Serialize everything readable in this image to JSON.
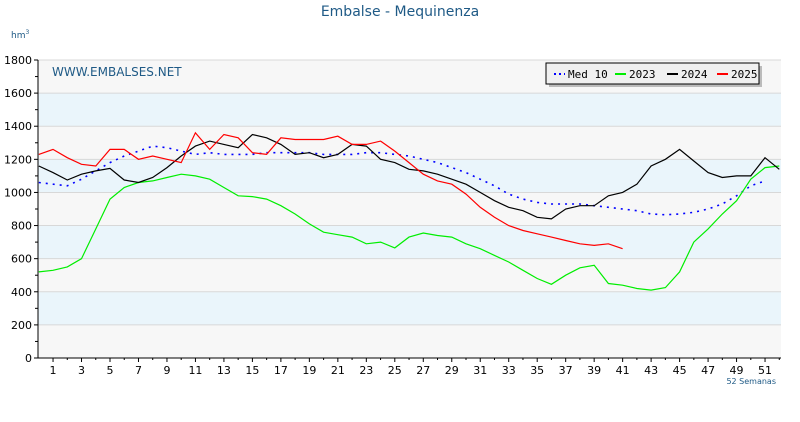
{
  "chart_data": {
    "type": "line",
    "title": "Embalse - Mequinenza",
    "ylabel": "hm",
    "ylabel_sup": "3",
    "watermark": "WWW.EMBALSES.NET",
    "xlabel": "52 Semanas",
    "ylim": [
      0,
      1800
    ],
    "yticks": [
      0,
      200,
      400,
      600,
      800,
      1000,
      1200,
      1400,
      1600,
      1800
    ],
    "xticks": [
      1,
      3,
      5,
      7,
      9,
      11,
      13,
      15,
      17,
      19,
      21,
      23,
      25,
      27,
      29,
      31,
      33,
      35,
      37,
      39,
      41,
      43,
      45,
      47,
      49,
      51
    ],
    "xlim": [
      0,
      52
    ],
    "grid": true,
    "legend_position": "top-right",
    "band_colors": [
      "#f7f7f7",
      "#eaf5fb"
    ],
    "series": [
      {
        "name": "Med 10",
        "color": "#0000ff",
        "style": "dotted",
        "values": [
          1060,
          1050,
          1040,
          1080,
          1130,
          1180,
          1220,
          1250,
          1280,
          1270,
          1250,
          1230,
          1240,
          1230,
          1230,
          1230,
          1240,
          1240,
          1240,
          1240,
          1230,
          1230,
          1230,
          1240,
          1240,
          1230,
          1220,
          1200,
          1180,
          1150,
          1120,
          1080,
          1040,
          990,
          960,
          940,
          930,
          930,
          930,
          920,
          910,
          900,
          890,
          870,
          865,
          870,
          880,
          900,
          930,
          980,
          1040,
          1070
        ]
      },
      {
        "name": "2023",
        "color": "#00ee00",
        "style": "solid",
        "values": [
          520,
          530,
          550,
          600,
          780,
          960,
          1030,
          1060,
          1070,
          1090,
          1110,
          1100,
          1080,
          1030,
          980,
          975,
          960,
          920,
          870,
          810,
          760,
          745,
          730,
          690,
          700,
          665,
          730,
          755,
          740,
          730,
          690,
          660,
          620,
          580,
          530,
          480,
          445,
          500,
          545,
          560,
          450,
          440,
          420,
          410,
          425,
          520,
          700,
          780,
          870,
          950,
          1080,
          1150,
          1160
        ]
      },
      {
        "name": "2024",
        "color": "#000000",
        "style": "solid",
        "values": [
          1160,
          1120,
          1075,
          1110,
          1130,
          1145,
          1075,
          1060,
          1090,
          1150,
          1220,
          1280,
          1310,
          1290,
          1270,
          1350,
          1330,
          1290,
          1230,
          1240,
          1210,
          1230,
          1290,
          1280,
          1200,
          1180,
          1140,
          1130,
          1110,
          1080,
          1050,
          1000,
          950,
          910,
          890,
          850,
          840,
          900,
          920,
          920,
          980,
          1000,
          1050,
          1160,
          1200,
          1260,
          1190,
          1120,
          1090,
          1100,
          1100,
          1210,
          1140
        ]
      },
      {
        "name": "2025",
        "color": "#ff0000",
        "style": "solid",
        "values": [
          1230,
          1260,
          1210,
          1170,
          1160,
          1260,
          1260,
          1200,
          1220,
          1200,
          1180,
          1360,
          1260,
          1350,
          1330,
          1240,
          1230,
          1330,
          1320,
          1320,
          1320,
          1340,
          1290,
          1290,
          1310,
          1250,
          1180,
          1110,
          1070,
          1050,
          990,
          910,
          850,
          800,
          770,
          750,
          730,
          710,
          690,
          680,
          690,
          660
        ]
      }
    ]
  }
}
